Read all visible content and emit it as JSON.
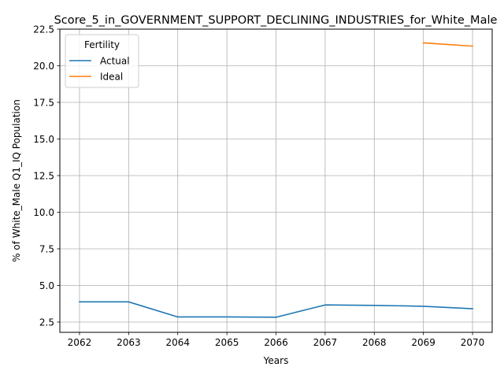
{
  "chart_data": {
    "type": "line",
    "title": "Score_5_in_GOVERNMENT_SUPPORT_DECLINING_INDUSTRIES_for_White_Male",
    "xlabel": "Years",
    "ylabel": "% of White_Male Q1_IQ Population",
    "x": [
      2062,
      2063,
      2064,
      2065,
      2066,
      2067,
      2068,
      2069,
      2070
    ],
    "xlim": [
      2061.6,
      2070.4
    ],
    "ylim": [
      1.8,
      22.5
    ],
    "yticks": [
      "2.5",
      "5.0",
      "7.5",
      "10.0",
      "12.5",
      "15.0",
      "17.5",
      "20.0",
      "22.5"
    ],
    "grid": true,
    "legend": {
      "title": "Fertility",
      "placement": "top-left"
    },
    "series": [
      {
        "name": "Actual",
        "color": "#1f77b4",
        "values": [
          3.88,
          3.88,
          2.85,
          2.85,
          2.83,
          3.67,
          3.64,
          3.58,
          3.41
        ]
      },
      {
        "name": "Ideal",
        "color": "#ff7f0e",
        "values": [
          null,
          null,
          null,
          null,
          null,
          null,
          null,
          21.56,
          21.34
        ]
      }
    ]
  }
}
